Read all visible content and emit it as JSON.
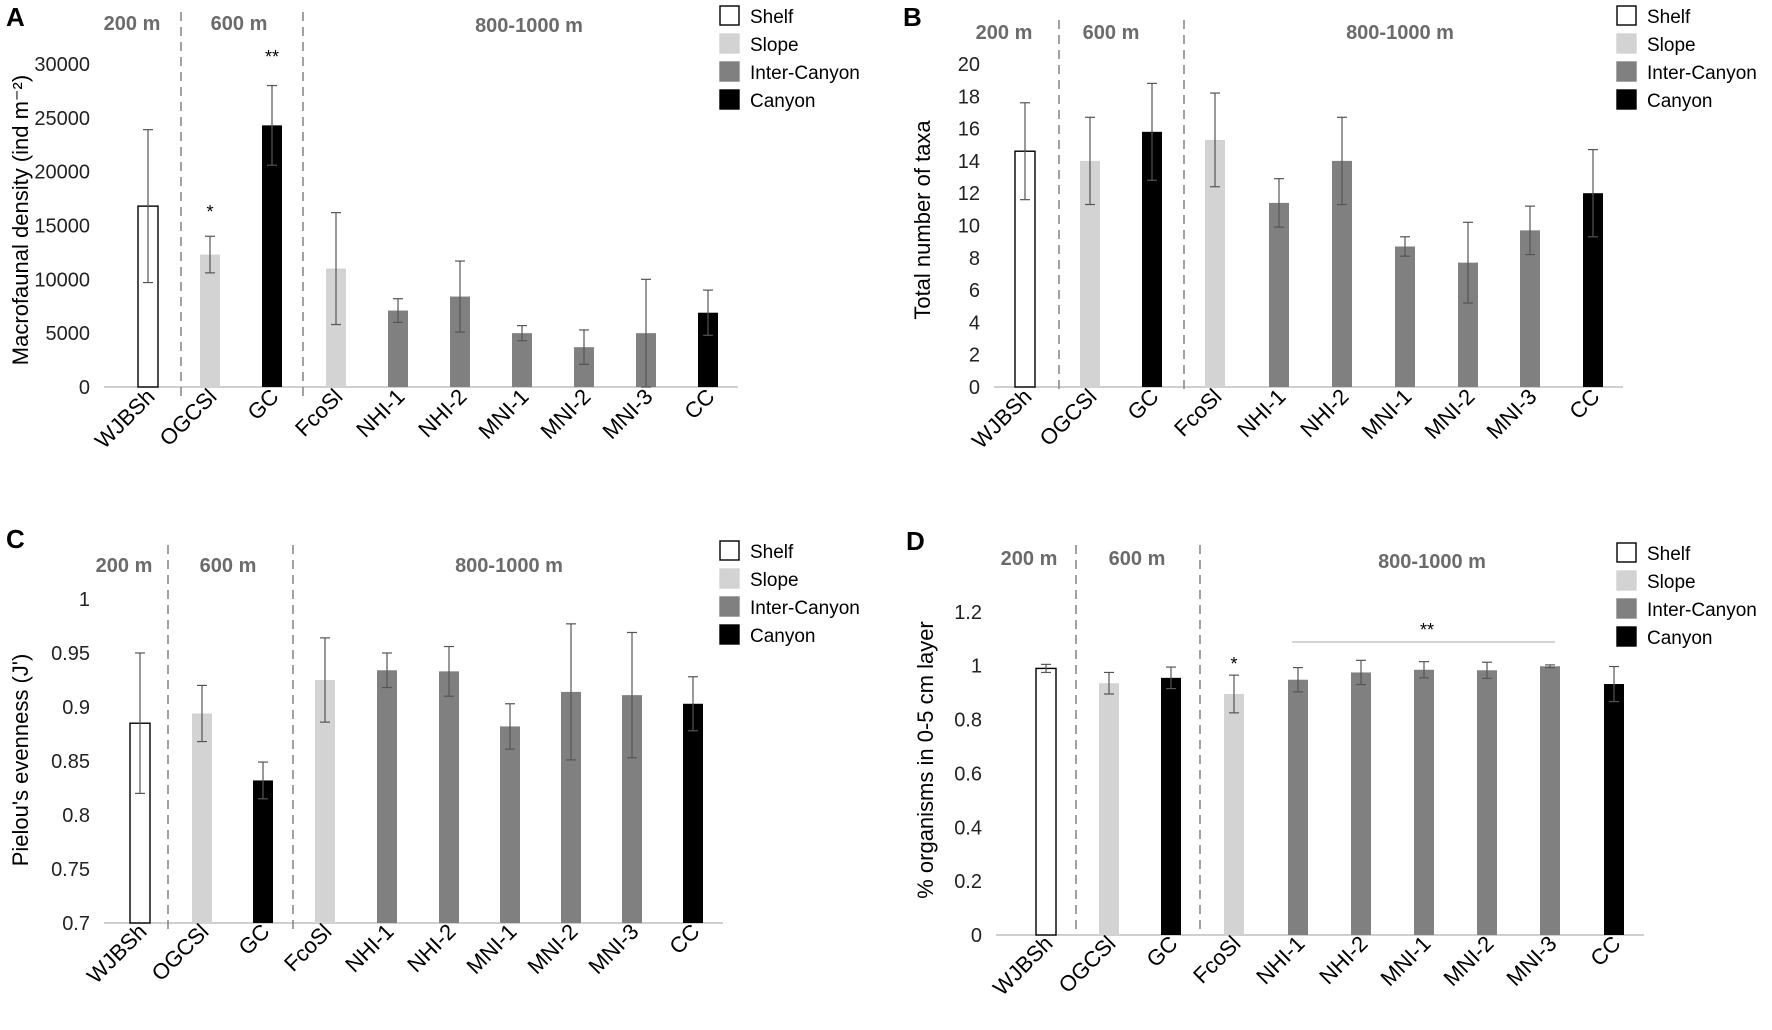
{
  "figure": {
    "legend_entries": [
      "Shelf",
      "Slope",
      "Inter-Canyon",
      "Canyon"
    ],
    "depth_zones": [
      "200 m",
      "600 m",
      "800-1000 m"
    ],
    "colors": {
      "Shelf": "#ffffff",
      "Slope": "#d3d3d3",
      "Inter-Canyon": "#808080",
      "Canyon": "#000000"
    }
  },
  "chart_data": [
    {
      "panel": "A",
      "type": "bar",
      "ylabel": "Macrofaunal density (ind m⁻²)",
      "ylim": [
        0,
        30000
      ],
      "yticks": [
        0,
        5000,
        10000,
        15000,
        20000,
        25000,
        30000
      ],
      "categories": [
        "WJBSh",
        "OGCSl",
        "GC",
        "FcoSl",
        "NHI-1",
        "NHI-2",
        "MNI-1",
        "MNI-2",
        "MNI-3",
        "CC"
      ],
      "groups": [
        "Shelf",
        "Slope",
        "Canyon",
        "Slope",
        "Inter-Canyon",
        "Inter-Canyon",
        "Inter-Canyon",
        "Inter-Canyon",
        "Inter-Canyon",
        "Canyon"
      ],
      "values": [
        16800,
        12300,
        24300,
        11000,
        7100,
        8400,
        5000,
        3700,
        5000,
        6900
      ],
      "errors": [
        7100,
        1700,
        3700,
        5200,
        1100,
        3300,
        700,
        1600,
        5000,
        2100
      ],
      "annotations": [
        {
          "category": "OGCSl",
          "text": "*"
        },
        {
          "category": "GC",
          "text": "**"
        }
      ]
    },
    {
      "panel": "B",
      "type": "bar",
      "ylabel": "Total number of taxa",
      "ylim": [
        0,
        20
      ],
      "yticks": [
        0,
        2,
        4,
        6,
        8,
        10,
        12,
        14,
        16,
        18,
        20
      ],
      "categories": [
        "WJBSh",
        "OGCSl",
        "GC",
        "FcoSl",
        "NHI-1",
        "NHI-2",
        "MNI-1",
        "MNI-2",
        "MNI-3",
        "CC"
      ],
      "groups": [
        "Shelf",
        "Slope",
        "Canyon",
        "Slope",
        "Inter-Canyon",
        "Inter-Canyon",
        "Inter-Canyon",
        "Inter-Canyon",
        "Inter-Canyon",
        "Canyon"
      ],
      "values": [
        14.6,
        14.0,
        15.8,
        15.3,
        11.4,
        14.0,
        8.7,
        7.7,
        9.7,
        12.0
      ],
      "errors": [
        3.0,
        2.7,
        3.0,
        2.9,
        1.5,
        2.7,
        0.6,
        2.5,
        1.5,
        2.7
      ],
      "annotations": []
    },
    {
      "panel": "C",
      "type": "bar",
      "ylabel": "Pielou's evenness (J')",
      "ylim": [
        0.7,
        1.0
      ],
      "yticks": [
        0.7,
        0.75,
        0.8,
        0.85,
        0.9,
        0.95,
        1
      ],
      "categories": [
        "WJBSh",
        "OGCSl",
        "GC",
        "FcoSl",
        "NHI-1",
        "NHI-2",
        "MNI-1",
        "MNI-2",
        "MNI-3",
        "CC"
      ],
      "groups": [
        "Shelf",
        "Slope",
        "Canyon",
        "Slope",
        "Inter-Canyon",
        "Inter-Canyon",
        "Inter-Canyon",
        "Inter-Canyon",
        "Inter-Canyon",
        "Canyon"
      ],
      "values": [
        0.885,
        0.894,
        0.832,
        0.925,
        0.934,
        0.933,
        0.882,
        0.914,
        0.911,
        0.903
      ],
      "errors": [
        0.065,
        0.026,
        0.017,
        0.039,
        0.016,
        0.023,
        0.021,
        0.063,
        0.058,
        0.025
      ],
      "annotations": []
    },
    {
      "panel": "D",
      "type": "bar",
      "ylabel": "% organisms in 0-5 cm layer",
      "ylim": [
        0,
        1.4
      ],
      "yticks": [
        0,
        0.2,
        0.4,
        0.6,
        0.8,
        1,
        1.2
      ],
      "categories": [
        "WJBSh",
        "OGCSl",
        "GC",
        "FcoSl",
        "NHI-1",
        "NHI-2",
        "MNI-1",
        "MNI-2",
        "MNI-3",
        "CC"
      ],
      "groups": [
        "Shelf",
        "Slope",
        "Canyon",
        "Slope",
        "Inter-Canyon",
        "Inter-Canyon",
        "Inter-Canyon",
        "Inter-Canyon",
        "Inter-Canyon",
        "Canyon"
      ],
      "values": [
        0.99,
        0.935,
        0.955,
        0.895,
        0.948,
        0.975,
        0.985,
        0.983,
        0.998,
        0.932
      ],
      "errors": [
        0.015,
        0.04,
        0.04,
        0.07,
        0.045,
        0.045,
        0.03,
        0.03,
        0.005,
        0.065
      ],
      "annotations": [
        {
          "category": "FcoSl",
          "text": "*"
        },
        {
          "category": "NHI-1 to MNI-3",
          "text": "**"
        }
      ]
    }
  ]
}
